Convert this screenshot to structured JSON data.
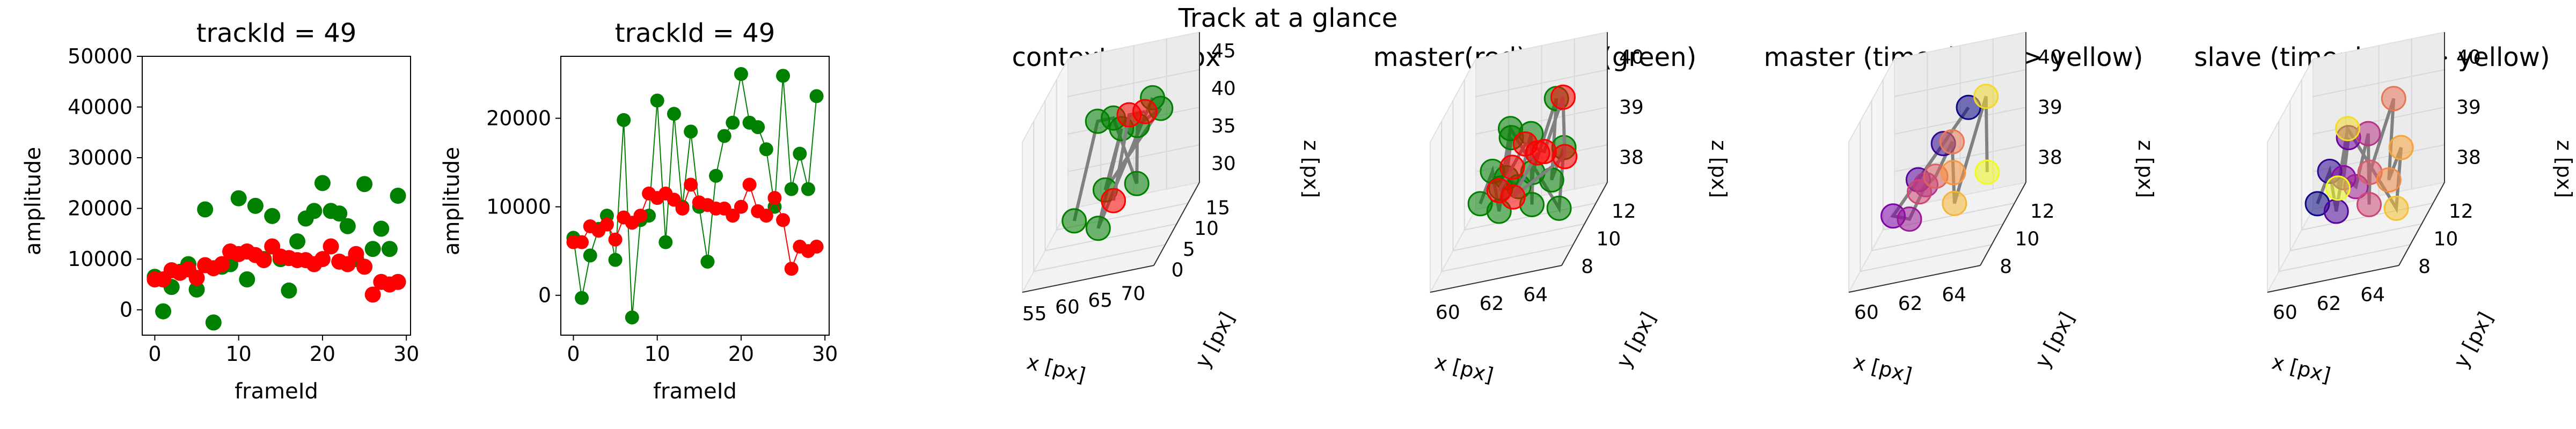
{
  "suptitle": "Track at a glance",
  "colors": {
    "red": "#ff0000",
    "green": "#008000",
    "gray": "#808080",
    "pane": "#f2f2f2"
  },
  "chart_data": [
    {
      "type": "scatter",
      "title": "trackId = 49",
      "xlabel": "frameId",
      "ylabel": "amplitude",
      "xlim": [
        -1.5,
        30.5
      ],
      "ylim": [
        -5000,
        50000
      ],
      "xticks": [
        0,
        10,
        20,
        30
      ],
      "yticks": [
        0,
        10000,
        20000,
        30000,
        40000,
        50000
      ],
      "series": [
        {
          "color": "green",
          "connected": false,
          "x": [
            0,
            1,
            2,
            3,
            4,
            5,
            6,
            7,
            8,
            9,
            10,
            11,
            12,
            13,
            14,
            15,
            16,
            17,
            18,
            19,
            20,
            21,
            22,
            23,
            24,
            25,
            26,
            27,
            28,
            29
          ],
          "y": [
            6500,
            -300,
            4500,
            7500,
            9000,
            4000,
            19800,
            -2500,
            8500,
            9000,
            22000,
            6000,
            20500,
            10000,
            18500,
            10000,
            3800,
            13500,
            18000,
            19500,
            25000,
            19500,
            19000,
            16500,
            10000,
            24800,
            12000,
            16000,
            12000,
            22500
          ]
        },
        {
          "color": "red",
          "connected": false,
          "x": [
            0,
            1,
            2,
            3,
            4,
            5,
            6,
            7,
            8,
            9,
            10,
            11,
            12,
            13,
            14,
            15,
            16,
            17,
            18,
            19,
            20,
            21,
            22,
            23,
            24,
            25,
            26,
            27,
            28,
            29
          ],
          "y": [
            6000,
            6000,
            7800,
            7300,
            8000,
            6300,
            8800,
            8200,
            9000,
            11500,
            11000,
            11500,
            10800,
            9800,
            12500,
            10500,
            10200,
            9800,
            9800,
            9000,
            10000,
            12500,
            9500,
            9000,
            11000,
            8500,
            3000,
            5500,
            5000,
            5500
          ]
        }
      ]
    },
    {
      "type": "line",
      "title": "trackId = 49",
      "xlabel": "frameId",
      "ylabel": "amplitude",
      "xlim": [
        -1.5,
        30.5
      ],
      "ylim": [
        -4500,
        27000
      ],
      "xticks": [
        0,
        10,
        20,
        30
      ],
      "yticks": [
        0,
        10000,
        20000
      ],
      "series": [
        {
          "color": "green",
          "connected": true,
          "x": [
            0,
            1,
            2,
            3,
            4,
            5,
            6,
            7,
            8,
            9,
            10,
            11,
            12,
            13,
            14,
            15,
            16,
            17,
            18,
            19,
            20,
            21,
            22,
            23,
            24,
            25,
            26,
            27,
            28,
            29
          ],
          "y": [
            6500,
            -300,
            4500,
            7500,
            9000,
            4000,
            19800,
            -2500,
            8500,
            9000,
            22000,
            6000,
            20500,
            10000,
            18500,
            10000,
            3800,
            13500,
            18000,
            19500,
            25000,
            19500,
            19000,
            16500,
            10000,
            24800,
            12000,
            16000,
            12000,
            22500
          ]
        },
        {
          "color": "red",
          "connected": true,
          "x": [
            0,
            1,
            2,
            3,
            4,
            5,
            6,
            7,
            8,
            9,
            10,
            11,
            12,
            13,
            14,
            15,
            16,
            17,
            18,
            19,
            20,
            21,
            22,
            23,
            24,
            25,
            26,
            27,
            28,
            29
          ],
          "y": [
            6000,
            6000,
            7800,
            7300,
            8000,
            6300,
            8800,
            8200,
            9000,
            11500,
            11000,
            11500,
            10800,
            9800,
            12500,
            10500,
            10200,
            9800,
            9800,
            9000,
            10000,
            12500,
            9500,
            9000,
            11000,
            8500,
            3000,
            5500,
            5000,
            5500
          ]
        }
      ]
    },
    {
      "type": "scatter",
      "projection": "3d",
      "title": "context +- 10px",
      "xlabel": "x [px]",
      "ylabel": "y [px]",
      "zlabel": "z [px]",
      "xticks": [
        "55",
        "60",
        "65",
        "70"
      ],
      "yticks": [
        "0",
        "5",
        "10",
        "15"
      ],
      "zticks": [
        "30",
        "35",
        "40",
        "45"
      ],
      "series": [
        {
          "color": "green",
          "points": [
            [
              60,
              9,
              38
            ],
            [
              61,
              10,
              39
            ],
            [
              62,
              10,
              39
            ],
            [
              63,
              11,
              38
            ],
            [
              64,
              9,
              39
            ],
            [
              65,
              10,
              39
            ],
            [
              61,
              11,
              38
            ],
            [
              63,
              9,
              39
            ],
            [
              62,
              8,
              38
            ],
            [
              64,
              11,
              39
            ]
          ]
        },
        {
          "color": "red",
          "points": [
            [
              62,
              10,
              38
            ],
            [
              63,
              10,
              39
            ],
            [
              64,
              10,
              39
            ]
          ]
        }
      ]
    },
    {
      "type": "scatter",
      "projection": "3d",
      "title": "master(red) slave(green)",
      "xlabel": "x [px]",
      "ylabel": "y [px]",
      "zlabel": "z [px]",
      "xticks": [
        "60",
        "62",
        "64"
      ],
      "yticks": [
        "8",
        "10",
        "12"
      ],
      "zticks": [
        "38",
        "39",
        "40"
      ],
      "series": [
        {
          "color": "green",
          "points": [
            [
              59,
              9,
              38.5
            ],
            [
              59.5,
              10,
              39
            ],
            [
              60,
              10,
              38
            ],
            [
              60.5,
              11,
              39.5
            ],
            [
              61,
              9,
              39
            ],
            [
              61.5,
              10,
              38.5
            ],
            [
              62,
              11,
              39.5
            ],
            [
              62.5,
              10,
              38
            ],
            [
              63,
              9,
              39
            ],
            [
              63.5,
              12,
              40
            ],
            [
              64,
              10,
              38.5
            ],
            [
              64.5,
              11,
              39
            ],
            [
              65,
              9,
              38
            ],
            [
              60,
              12,
              39.5
            ],
            [
              61,
              8,
              39
            ]
          ]
        },
        {
          "color": "red",
          "points": [
            [
              60,
              10,
              38.5
            ],
            [
              61,
              10,
              39
            ],
            [
              62,
              10,
              39.5
            ],
            [
              63,
              11,
              39
            ],
            [
              64,
              12,
              40
            ],
            [
              65,
              10,
              39
            ],
            [
              61.5,
              9,
              38.5
            ],
            [
              62.5,
              11,
              39
            ]
          ]
        }
      ]
    },
    {
      "type": "scatter",
      "projection": "3d",
      "title": "master (time: blue -> yellow)",
      "xlabel": "x [px]",
      "ylabel": "y [px]",
      "zlabel": "z [px]",
      "xticks": [
        "60",
        "62",
        "64"
      ],
      "yticks": [
        "8",
        "10",
        "12"
      ],
      "zticks": [
        "38",
        "39",
        "40"
      ],
      "series": [
        {
          "color": "time",
          "points": [
            [
              63,
              12,
              40
            ],
            [
              62,
              11,
              39.5
            ],
            [
              61,
              10,
              39
            ],
            [
              60,
              9,
              38.5
            ],
            [
              60.5,
              10,
              38
            ],
            [
              61,
              11,
              38.5
            ],
            [
              61.5,
              9,
              39
            ],
            [
              62,
              10,
              39
            ],
            [
              62.5,
              11,
              39.5
            ],
            [
              63,
              10,
              39
            ],
            [
              63.5,
              9,
              38.5
            ],
            [
              64,
              12,
              40.2
            ],
            [
              64.5,
              11,
              38.5
            ]
          ]
        }
      ]
    },
    {
      "type": "scatter",
      "projection": "3d",
      "title": "slave (time: blue -> yellow)",
      "xlabel": "x [px]",
      "ylabel": "y [px]",
      "zlabel": "z [px]",
      "xticks": [
        "60",
        "62",
        "64"
      ],
      "yticks": [
        "8",
        "10",
        "12"
      ],
      "zticks": [
        "38",
        "39",
        "40"
      ],
      "series": [
        {
          "color": "time",
          "points": [
            [
              59,
              9,
              38.5
            ],
            [
              59.5,
              10,
              39
            ],
            [
              60,
              10,
              38
            ],
            [
              60.5,
              11,
              39.5
            ],
            [
              61,
              9,
              39
            ],
            [
              61.5,
              10,
              38.5
            ],
            [
              62,
              11,
              39.5
            ],
            [
              62.5,
              10,
              38
            ],
            [
              63,
              9,
              39
            ],
            [
              63.5,
              12,
              40
            ],
            [
              64,
              10,
              38.5
            ],
            [
              64.5,
              11,
              39
            ],
            [
              65,
              9,
              38
            ],
            [
              60,
              12,
              39.5
            ],
            [
              61,
              8,
              39
            ]
          ]
        }
      ]
    }
  ]
}
